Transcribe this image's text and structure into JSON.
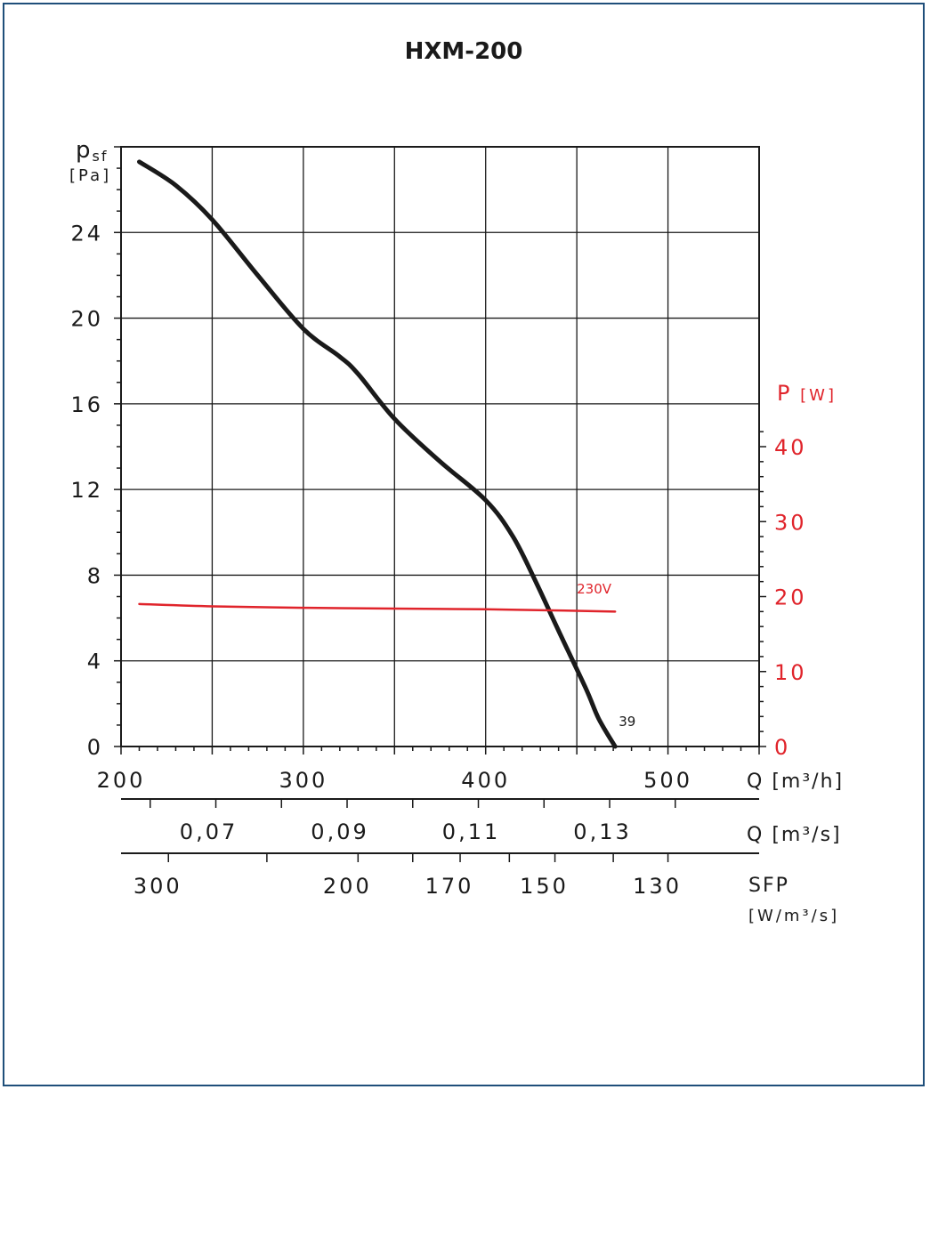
{
  "chart_data": {
    "type": "line",
    "title": "HXM-200",
    "x": {
      "label": "Q",
      "unit": "[m³/h]",
      "min": 200,
      "max": 550,
      "ticks": [
        200,
        300,
        400,
        500
      ],
      "tick_labels": [
        "200",
        "300",
        "400",
        "500"
      ],
      "grid_step": 50,
      "minor_step": 10
    },
    "x2": {
      "label": "Q",
      "unit": "[m³/s]",
      "ticks": [
        0.07,
        0.09,
        0.11,
        0.13
      ],
      "tick_labels": [
        "0,07",
        "0,09",
        "0,11",
        "0,13"
      ],
      "minor_ticks": [
        0.06,
        0.08,
        0.1,
        0.12,
        0.14
      ]
    },
    "sfp": {
      "label": "SFP",
      "unit": "[W/m³/s]",
      "ticks": [
        300,
        200,
        170,
        150,
        130
      ],
      "tick_labels": [
        "300",
        "200",
        "170",
        "150",
        "130"
      ],
      "tick_q": [
        226,
        330,
        386,
        438,
        500
      ],
      "minor_q": [
        280,
        360,
        413,
        470
      ]
    },
    "y_left": {
      "label": "p",
      "label_sub": "sf",
      "unit": "[Pa]",
      "min": 0,
      "max": 28,
      "ticks": [
        0,
        4,
        8,
        12,
        16,
        20,
        24
      ],
      "tick_labels": [
        "0",
        "4",
        "8",
        "12",
        "16",
        "20",
        "24"
      ],
      "grid_step": 4,
      "minor_step": 1
    },
    "y_right": {
      "label": "P",
      "unit": "[W]",
      "min": 0,
      "max": 40,
      "ticks": [
        0,
        10,
        20,
        30,
        40
      ],
      "tick_labels": [
        "0",
        "10",
        "20",
        "30",
        "40"
      ],
      "minor_step": 2
    },
    "grid": true,
    "series": [
      {
        "role": "pressure",
        "axis": "left",
        "color": "#1a1a1a",
        "x": [
          210,
          230,
          250,
          275,
          300,
          320,
          330,
          350,
          375,
          400,
          415,
          428,
          440,
          455,
          462,
          471
        ],
        "y": [
          27.3,
          26.2,
          24.6,
          22.0,
          19.5,
          18.2,
          17.4,
          15.3,
          13.3,
          11.5,
          9.8,
          7.6,
          5.4,
          2.7,
          1.3,
          0
        ]
      },
      {
        "name": "230V",
        "role": "power",
        "axis": "right",
        "color": "#e0242b",
        "x": [
          210,
          250,
          300,
          350,
          400,
          450,
          471
        ],
        "y": [
          19.0,
          18.7,
          18.5,
          18.4,
          18.3,
          18.1,
          18.0
        ]
      }
    ],
    "annotations": [
      {
        "text": "39",
        "x": 473,
        "y": 0.7,
        "axis": "left"
      },
      {
        "text": "230V",
        "x": 450,
        "y": 19.7,
        "axis": "right"
      }
    ]
  }
}
